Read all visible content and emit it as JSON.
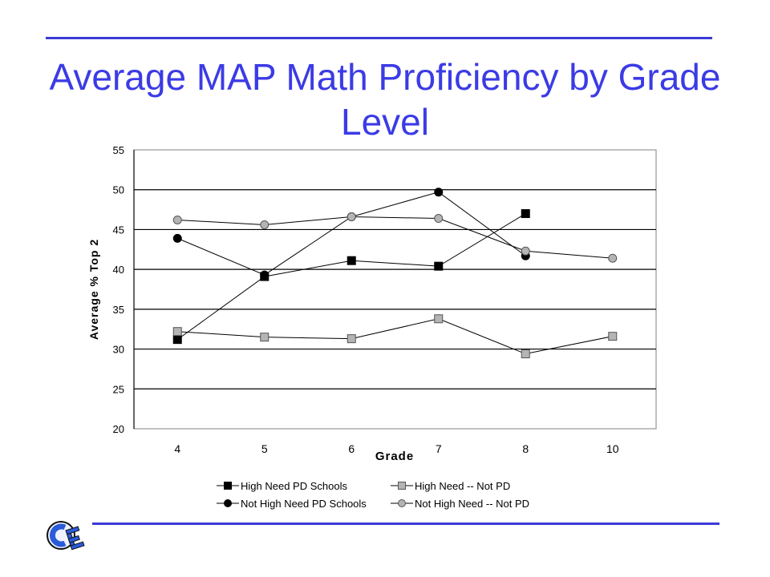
{
  "slide": {
    "title": "Average MAP Math Proficiency by Grade Level"
  },
  "chart_data": {
    "type": "line",
    "xlabel": "Grade",
    "ylabel": "Average % Top 2",
    "categories": [
      "4",
      "5",
      "6",
      "7",
      "8",
      "10"
    ],
    "ylim": [
      20,
      55
    ],
    "yticks": [
      20,
      25,
      30,
      35,
      40,
      45,
      50,
      55
    ],
    "grid": "horizontal",
    "legend_position": "bottom",
    "series": [
      {
        "name": "High Need PD Schools",
        "marker": "square",
        "color": "#000000",
        "values": [
          31.2,
          39.1,
          41.1,
          40.4,
          47.0,
          null
        ]
      },
      {
        "name": "High Need -- Not PD",
        "marker": "square",
        "color": "#b4b4b4",
        "values": [
          32.2,
          31.5,
          31.3,
          33.8,
          29.4,
          31.6
        ]
      },
      {
        "name": "Not High Need PD Schools",
        "marker": "circle",
        "color": "#000000",
        "values": [
          43.9,
          39.3,
          46.6,
          49.7,
          41.7,
          null
        ]
      },
      {
        "name": "Not High Need -- Not PD",
        "marker": "circle",
        "color": "#b4b4b4",
        "values": [
          46.2,
          45.6,
          46.6,
          46.4,
          42.3,
          41.4
        ]
      }
    ]
  },
  "logo": {
    "name": "ce-logo-icon"
  }
}
